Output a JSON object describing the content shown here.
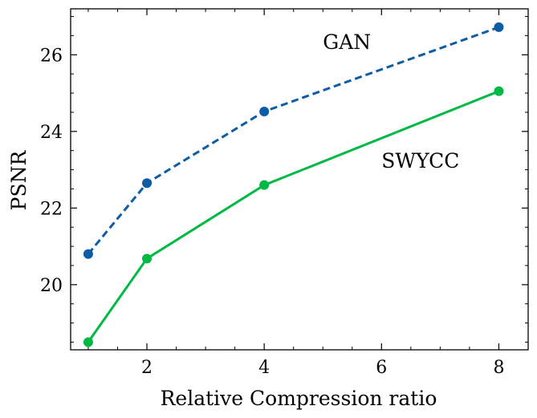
{
  "chart_data": {
    "type": "line",
    "title": "",
    "xlabel": "Relative Compression ratio",
    "ylabel": "PSNR",
    "xlim": [
      0.7,
      8.5
    ],
    "ylim": [
      18.3,
      27.2
    ],
    "x_ticks": [
      2,
      4,
      6,
      8
    ],
    "y_ticks": [
      20,
      22,
      24,
      26
    ],
    "x_tick_labels": [
      "2",
      "4",
      "6",
      "8"
    ],
    "y_tick_labels": [
      "20",
      "22",
      "24",
      "26"
    ],
    "grid": false,
    "series": [
      {
        "name": "GAN",
        "x": [
          1,
          2,
          4,
          8
        ],
        "values": [
          20.8,
          22.65,
          24.52,
          26.72
        ],
        "color": "#0c5da5",
        "linestyle": "dashed",
        "marker": "circle"
      },
      {
        "name": "SWYCC",
        "x": [
          1,
          2,
          4,
          8
        ],
        "values": [
          18.5,
          20.68,
          22.6,
          25.05
        ],
        "color": "#00b945",
        "linestyle": "solid",
        "marker": "circle"
      }
    ],
    "annotations": [
      {
        "text": "GAN",
        "x": 5.0,
        "y": 26.15
      },
      {
        "text": "SWYCC",
        "x": 6.0,
        "y": 23.05
      }
    ]
  }
}
